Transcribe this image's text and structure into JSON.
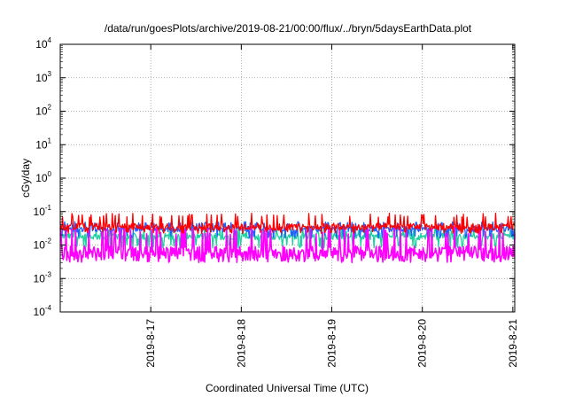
{
  "chart_data": {
    "type": "line",
    "title": "/data/run/goesPlots/archive/2019-08-21/00:00/flux/../bryn/5daysEarthData.plot",
    "xlabel": "Coordinated Universal Time (UTC)",
    "ylabel": "cGy/day",
    "yscale": "log",
    "ylim": [
      0.0001,
      10000
    ],
    "xlim": [
      "2019-08-16 00:00",
      "2019-08-21 00:30"
    ],
    "x_ticks": [
      "2019-8-17",
      "2019-8-18",
      "2019-8-19",
      "2019-8-20",
      "2019-8-21"
    ],
    "y_ticks": [
      {
        "base": "10",
        "exp": "-4"
      },
      {
        "base": "10",
        "exp": "-3"
      },
      {
        "base": "10",
        "exp": "-2"
      },
      {
        "base": "10",
        "exp": "-1"
      },
      {
        "base": "10",
        "exp": "0"
      },
      {
        "base": "10",
        "exp": "1"
      },
      {
        "base": "10",
        "exp": "2"
      },
      {
        "base": "10",
        "exp": "3"
      },
      {
        "base": "10",
        "exp": "4"
      }
    ],
    "grid": true,
    "legend": "none",
    "series": [
      {
        "color": "#ff0000",
        "typical": 0.035,
        "low": 0.022,
        "high": 0.09
      },
      {
        "color": "#2060ff",
        "typical": 0.03,
        "low": 0.016,
        "high": 0.05
      },
      {
        "color": "#20d0a0",
        "typical": 0.018,
        "low": 0.008,
        "high": 0.03
      },
      {
        "color": "#ff00ff",
        "typical": 0.006,
        "low": 0.003,
        "high": 0.035
      }
    ]
  }
}
